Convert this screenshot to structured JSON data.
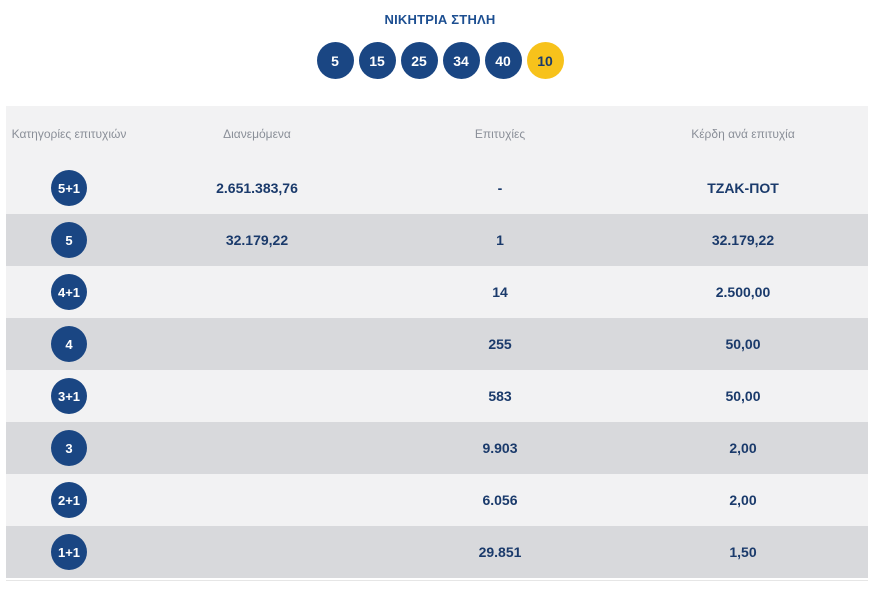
{
  "winning_column": {
    "title": "ΝΙΚΗΤΡΙΑ ΣΤΗΛΗ",
    "numbers": [
      "5",
      "15",
      "25",
      "34",
      "40"
    ],
    "bonus": "10",
    "colors": {
      "ball": "#1a4683",
      "bonus_ball": "#f7c21b",
      "text": "#1d4f91"
    }
  },
  "table": {
    "headers": {
      "category": "Κατηγορίες επιτυχιών",
      "distributed": "Διανεμόμενα",
      "winners": "Επιτυχίες",
      "prize": "Κέρδη ανά επιτυχία"
    },
    "rows": [
      {
        "category": "5+1",
        "distributed": "2.651.383,76",
        "winners": "-",
        "prize": "ΤΖΑΚ-ΠΟΤ"
      },
      {
        "category": "5",
        "distributed": "32.179,22",
        "winners": "1",
        "prize": "32.179,22"
      },
      {
        "category": "4+1",
        "distributed": "",
        "winners": "14",
        "prize": "2.500,00"
      },
      {
        "category": "4",
        "distributed": "",
        "winners": "255",
        "prize": "50,00"
      },
      {
        "category": "3+1",
        "distributed": "",
        "winners": "583",
        "prize": "50,00"
      },
      {
        "category": "3",
        "distributed": "",
        "winners": "9.903",
        "prize": "2,00"
      },
      {
        "category": "2+1",
        "distributed": "",
        "winners": "6.056",
        "prize": "2,00"
      },
      {
        "category": "1+1",
        "distributed": "",
        "winners": "29.851",
        "prize": "1,50"
      }
    ],
    "colors": {
      "row_light": "#f2f2f3",
      "row_dark": "#d8d9dc",
      "value_text": "#1a3a6b",
      "header_text": "#8a8f98"
    }
  }
}
